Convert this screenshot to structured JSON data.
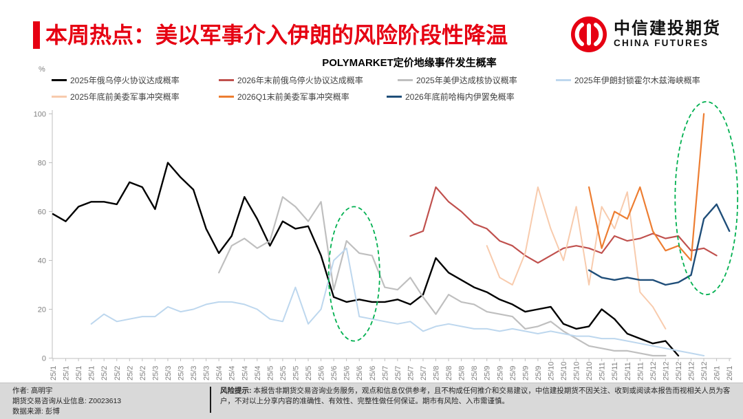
{
  "header": {
    "title": "本周热点：美以军事介入伊朗的风险阶段性降温",
    "logo_cn": "中信建投期货",
    "logo_en": "CHINA FUTURES"
  },
  "chart_data": {
    "type": "line",
    "title": "POLYMARKET定价地缘事件发生概率",
    "ylabel": "%",
    "ylim": [
      0,
      100
    ],
    "y_ticks": [
      0,
      20,
      40,
      60,
      80,
      100
    ],
    "grid": false,
    "legend_position": "top",
    "x_tick_labels": [
      "25/1",
      "25/1",
      "25/1",
      "25/1",
      "25/2",
      "25/2",
      "25/2",
      "25/2",
      "25/3",
      "25/3",
      "25/3",
      "25/3",
      "25/3",
      "25/4",
      "25/4",
      "25/4",
      "25/4",
      "25/5",
      "25/5",
      "25/5",
      "25/5",
      "25/6",
      "25/6",
      "25/6",
      "25/6",
      "25/6",
      "25/7",
      "25/7",
      "25/7",
      "25/7",
      "25/8",
      "25/8",
      "25/8",
      "25/8",
      "25/9",
      "25/9",
      "25/9",
      "25/9",
      "25/9",
      "25/10",
      "25/10",
      "25/10",
      "25/10",
      "25/11",
      "25/11",
      "25/11",
      "25/11",
      "25/12",
      "25/12",
      "25/12",
      "25/12",
      "25/12",
      "26/1",
      "26/1"
    ],
    "series": [
      {
        "name": "2025年俄乌停火协议达成概率",
        "color": "#000000",
        "width": 2.4,
        "values": [
          59,
          56,
          62,
          64,
          64,
          63,
          72,
          70,
          61,
          80,
          74,
          69,
          53,
          43,
          50,
          66,
          57,
          46,
          56,
          53,
          54,
          42,
          25,
          23,
          24,
          23,
          23,
          24,
          22,
          26,
          41,
          35,
          32,
          29,
          27,
          24,
          22,
          19,
          20,
          21,
          14,
          12,
          13,
          20,
          16,
          10,
          8,
          6,
          7,
          1,
          null,
          null,
          null,
          null
        ]
      },
      {
        "name": "2026年末前俄乌停火协议达成概率",
        "color": "#c0504d",
        "width": 2.2,
        "values": [
          null,
          null,
          null,
          null,
          null,
          null,
          null,
          null,
          null,
          null,
          null,
          null,
          null,
          null,
          null,
          null,
          null,
          null,
          null,
          null,
          null,
          null,
          null,
          null,
          null,
          null,
          null,
          null,
          50,
          52,
          70,
          64,
          60,
          55,
          53,
          48,
          46,
          42,
          39,
          42,
          45,
          46,
          45,
          43,
          50,
          48,
          49,
          51,
          49,
          50,
          44,
          45,
          42,
          null
        ]
      },
      {
        "name": "2025年美伊达成核协议概率",
        "color": "#bfbfbf",
        "width": 2.2,
        "values": [
          null,
          null,
          null,
          null,
          null,
          null,
          null,
          null,
          null,
          null,
          null,
          null,
          null,
          35,
          46,
          49,
          45,
          48,
          66,
          62,
          56,
          64,
          28,
          48,
          43,
          42,
          29,
          28,
          33,
          25,
          18,
          26,
          23,
          22,
          19,
          18,
          17,
          12,
          13,
          15,
          11,
          8,
          5,
          4,
          3,
          3,
          2,
          1,
          1,
          null,
          null,
          null,
          null,
          null
        ]
      },
      {
        "name": "2025年伊朗封锁霍尔木兹海峡概率",
        "color": "#bdd7ee",
        "width": 2,
        "values": [
          null,
          null,
          null,
          14,
          18,
          15,
          16,
          17,
          17,
          21,
          19,
          20,
          22,
          23,
          23,
          22,
          20,
          16,
          15,
          29,
          14,
          20,
          40,
          45,
          17,
          16,
          15,
          14,
          15,
          11,
          13,
          14,
          13,
          12,
          12,
          11,
          12,
          11,
          10,
          11,
          10,
          9,
          9,
          8,
          8,
          7,
          6,
          5,
          4,
          3,
          2,
          1,
          null,
          null
        ]
      },
      {
        "name": "2025年底前美委军事冲突概率",
        "color": "#f8cbad",
        "width": 2,
        "values": [
          null,
          null,
          null,
          null,
          null,
          null,
          null,
          null,
          null,
          null,
          null,
          null,
          null,
          null,
          null,
          null,
          null,
          null,
          null,
          null,
          null,
          null,
          null,
          null,
          null,
          null,
          null,
          null,
          null,
          null,
          null,
          null,
          null,
          null,
          46,
          33,
          30,
          43,
          70,
          53,
          40,
          62,
          30,
          62,
          53,
          68,
          27,
          21,
          12,
          null,
          null,
          null,
          null,
          null
        ]
      },
      {
        "name": "2026Q1末前美委军事冲突概率",
        "color": "#ed7d31",
        "width": 2.2,
        "values": [
          null,
          null,
          null,
          null,
          null,
          null,
          null,
          null,
          null,
          null,
          null,
          null,
          null,
          null,
          null,
          null,
          null,
          null,
          null,
          null,
          null,
          null,
          null,
          null,
          null,
          null,
          null,
          null,
          null,
          null,
          null,
          null,
          null,
          null,
          null,
          null,
          null,
          null,
          null,
          null,
          null,
          null,
          70,
          45,
          60,
          57,
          70,
          52,
          44,
          46,
          40,
          100,
          null,
          null
        ]
      },
      {
        "name": "2026年底前哈梅内伊罢免概率",
        "color": "#1f4e79",
        "width": 2.4,
        "values": [
          null,
          null,
          null,
          null,
          null,
          null,
          null,
          null,
          null,
          null,
          null,
          null,
          null,
          null,
          null,
          null,
          null,
          null,
          null,
          null,
          null,
          null,
          null,
          null,
          null,
          null,
          null,
          null,
          null,
          null,
          null,
          null,
          null,
          null,
          null,
          null,
          null,
          null,
          null,
          null,
          null,
          null,
          36,
          33,
          32,
          33,
          32,
          32,
          30,
          31,
          34,
          57,
          63,
          52
        ]
      }
    ],
    "annotations": [
      {
        "type": "ellipse",
        "style": "dashed",
        "color": "#00b050",
        "cx_tick": 23.6,
        "cy_value": 34.5,
        "rx_ticks": 2.0,
        "ry_value": 27.5
      },
      {
        "type": "ellipse",
        "style": "dashed",
        "color": "#00b050",
        "cx_tick": 51.2,
        "cy_value": 65.5,
        "rx_ticks": 2.45,
        "ry_value": 39.5
      }
    ]
  },
  "footer": {
    "author_line": "作者: 高明宇",
    "license_line": "期货交易咨询从业信息: Z0023613",
    "source_line": "数据来源: 彭博",
    "risk_label": "风险提示:",
    "risk_text": "本报告非期货交易咨询业务服务，观点和信息仅供参考，且不构成任何推介和交易建议，中信建投期货不因关注、收到或阅读本报告而视相关人员为客户，不对以上分享内容的准确性、有效性、完整性做任何保证。期市有风险、入市需谨慎。"
  }
}
